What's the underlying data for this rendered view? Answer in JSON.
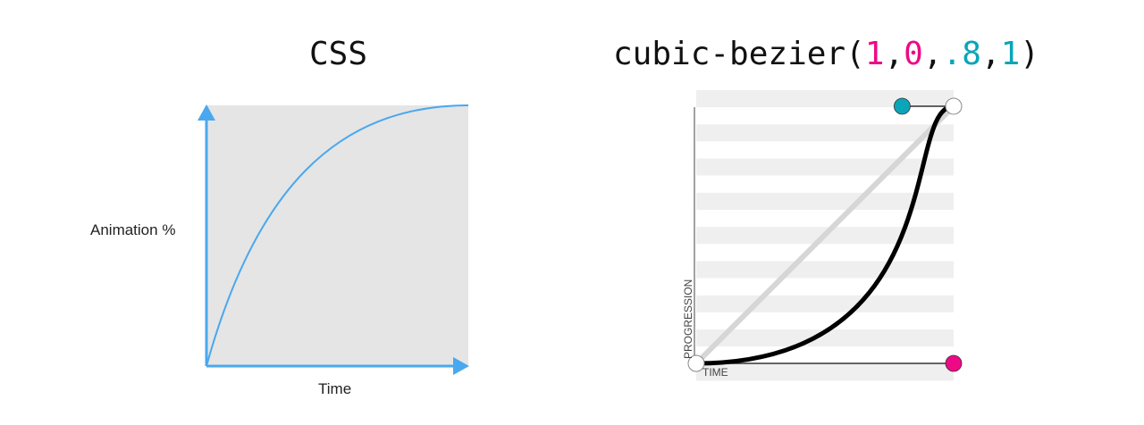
{
  "left": {
    "title": "CSS",
    "y_label": "Animation %",
    "x_label": "Time",
    "axis_color": "#4aa8ee",
    "curve_color": "#4aa8ee",
    "background_color": "#e5e5e5"
  },
  "right": {
    "title_parts": [
      {
        "text": "cubic-bezier(",
        "color": "#111111"
      },
      {
        "text": "1",
        "color": "#ee0a86"
      },
      {
        "text": ",",
        "color": "#111111"
      },
      {
        "text": "0",
        "color": "#ee0a86"
      },
      {
        "text": ",",
        "color": "#111111"
      },
      {
        "text": ".8",
        "color": "#0aa5b8"
      },
      {
        "text": ",",
        "color": "#111111"
      },
      {
        "text": "1",
        "color": "#0aa5b8"
      },
      {
        "text": ")",
        "color": "#111111"
      }
    ],
    "bezier": {
      "x1": 1,
      "y1": 0,
      "x2": 0.8,
      "y2": 1
    },
    "y_label": "PROGRESSION",
    "x_label": "TIME",
    "p1_color": "#ee0a86",
    "p2_color": "#0aa5b8"
  }
}
